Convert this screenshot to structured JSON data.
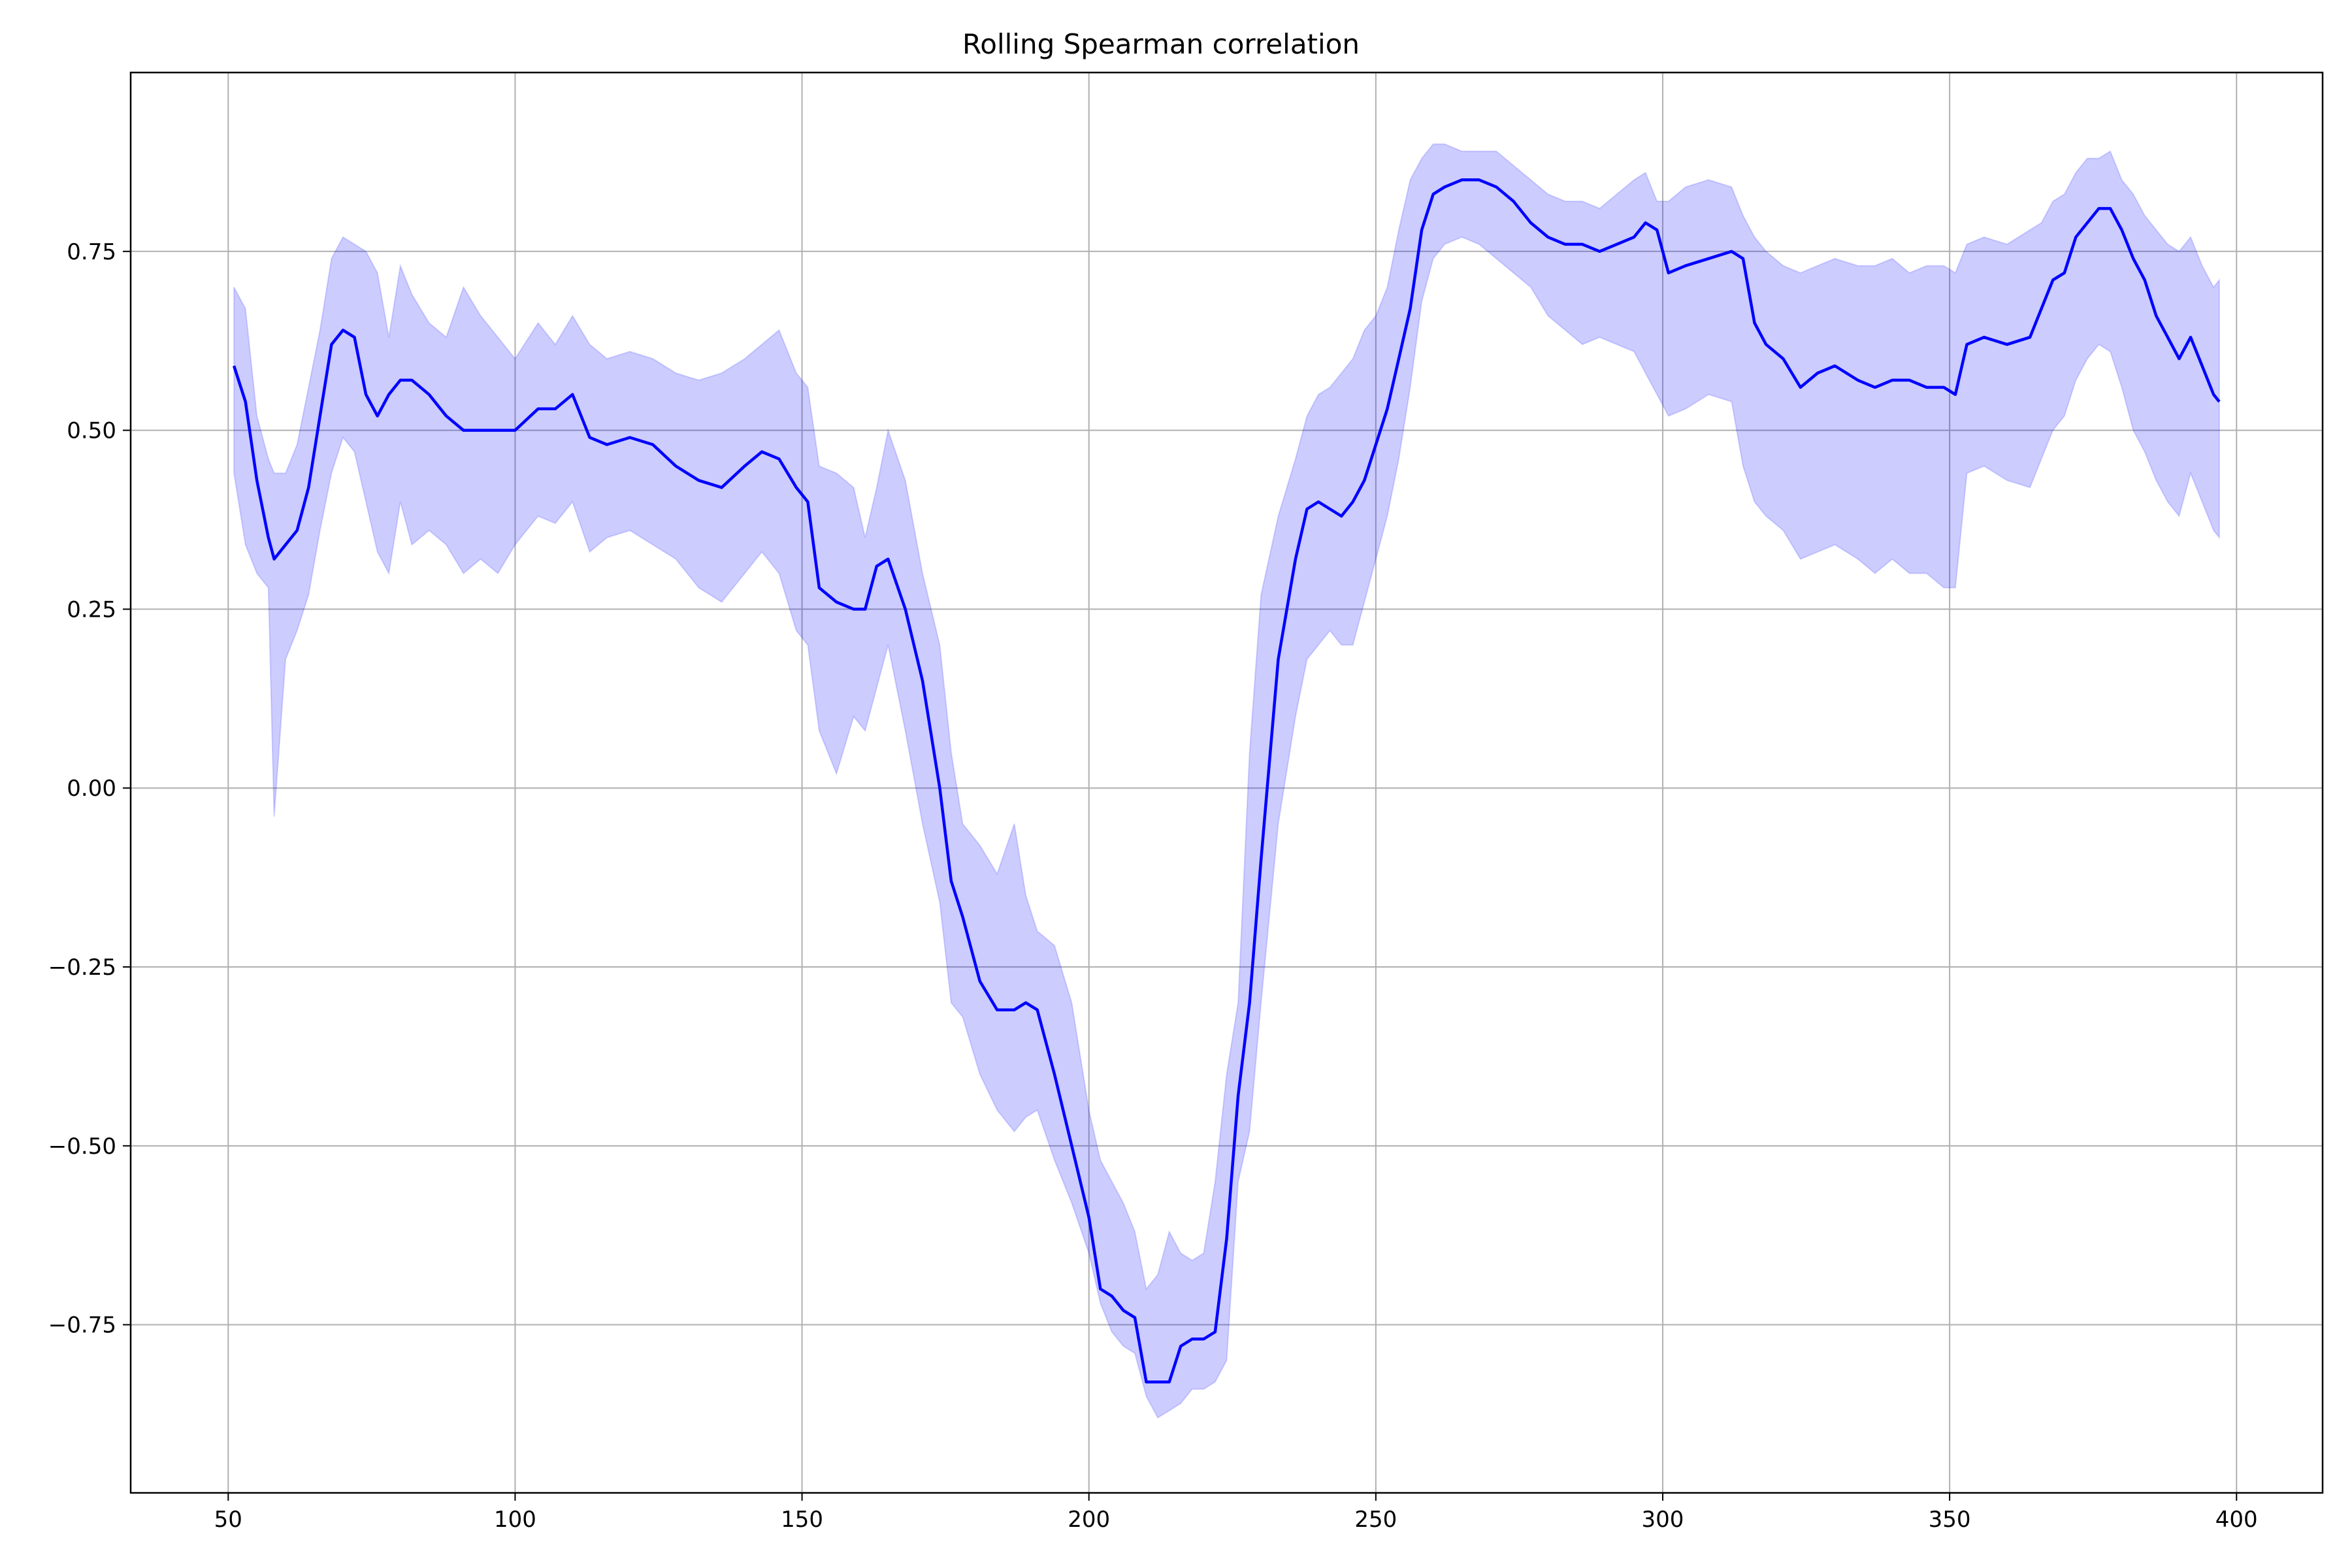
{
  "chart_data": {
    "type": "line",
    "title": "Rolling Spearman correlation",
    "xlabel": "",
    "ylabel": "",
    "xlim": [
      33,
      415
    ],
    "ylim": [
      -0.985,
      1.0
    ],
    "grid": true,
    "colors": {
      "line": "#0000ff",
      "band": "#0000ff",
      "grid": "#b0b0b0",
      "axes": "#000000"
    },
    "x_ticks": [
      50,
      100,
      150,
      200,
      250,
      300,
      350,
      400
    ],
    "x_tick_labels": [
      "50",
      "100",
      "150",
      "200",
      "250",
      "300",
      "350",
      "400"
    ],
    "y_ticks": [
      0.75,
      0.5,
      0.25,
      0.0,
      -0.25,
      -0.5,
      -0.75
    ],
    "y_tick_labels": [
      "0.75",
      "0.50",
      "0.25",
      "0.00",
      "−0.25",
      "−0.50",
      "−0.75"
    ],
    "series": [
      {
        "x": [
          51,
          53,
          55,
          57,
          58,
          60,
          62,
          64,
          66,
          68,
          70,
          72,
          74,
          76,
          78,
          80,
          82,
          85,
          88,
          91,
          94,
          97,
          100,
          104,
          107,
          110,
          113,
          116,
          120,
          124,
          128,
          132,
          136,
          140,
          143,
          146,
          149,
          151,
          153,
          156,
          159,
          161,
          163,
          165,
          168,
          171,
          174,
          176,
          178,
          181,
          184,
          187,
          189,
          191,
          194,
          197,
          200,
          202,
          204,
          206,
          208,
          210,
          212,
          214,
          216,
          218,
          220,
          222,
          224,
          226,
          228,
          230,
          233,
          236,
          238,
          240,
          242,
          244,
          246,
          248,
          250,
          252,
          254,
          256,
          258,
          260,
          262,
          265,
          268,
          271,
          274,
          277,
          280,
          283,
          286,
          289,
          292,
          295,
          297,
          299,
          301,
          304,
          308,
          312,
          314,
          316,
          318,
          321,
          324,
          327,
          330,
          334,
          337,
          340,
          343,
          346,
          349,
          351,
          353,
          356,
          360,
          364,
          366,
          368,
          370,
          372,
          374,
          376,
          378,
          380,
          382,
          384,
          386,
          388,
          390,
          392,
          394,
          396,
          397
        ],
        "mean": [
          0.59,
          0.54,
          0.43,
          0.35,
          0.32,
          0.34,
          0.36,
          0.42,
          0.52,
          0.62,
          0.64,
          0.63,
          0.55,
          0.52,
          0.55,
          0.57,
          0.57,
          0.55,
          0.52,
          0.5,
          0.5,
          0.5,
          0.5,
          0.53,
          0.53,
          0.55,
          0.49,
          0.48,
          0.49,
          0.48,
          0.45,
          0.43,
          0.42,
          0.45,
          0.47,
          0.46,
          0.42,
          0.4,
          0.28,
          0.26,
          0.25,
          0.25,
          0.31,
          0.32,
          0.25,
          0.15,
          0.0,
          -0.13,
          -0.18,
          -0.27,
          -0.31,
          -0.31,
          -0.3,
          -0.31,
          -0.4,
          -0.5,
          -0.6,
          -0.7,
          -0.71,
          -0.73,
          -0.74,
          -0.83,
          -0.83,
          -0.83,
          -0.78,
          -0.77,
          -0.77,
          -0.76,
          -0.63,
          -0.43,
          -0.3,
          -0.1,
          0.18,
          0.32,
          0.39,
          0.4,
          0.39,
          0.38,
          0.4,
          0.43,
          0.48,
          0.53,
          0.6,
          0.67,
          0.78,
          0.83,
          0.84,
          0.85,
          0.85,
          0.84,
          0.82,
          0.79,
          0.77,
          0.76,
          0.76,
          0.75,
          0.76,
          0.77,
          0.79,
          0.78,
          0.72,
          0.73,
          0.74,
          0.75,
          0.74,
          0.65,
          0.62,
          0.6,
          0.56,
          0.58,
          0.59,
          0.57,
          0.56,
          0.57,
          0.57,
          0.56,
          0.56,
          0.55,
          0.62,
          0.63,
          0.62,
          0.63,
          0.67,
          0.71,
          0.72,
          0.77,
          0.79,
          0.81,
          0.81,
          0.78,
          0.74,
          0.71,
          0.66,
          0.63,
          0.6,
          0.63,
          0.59,
          0.55,
          0.54
        ],
        "upper": [
          0.7,
          0.67,
          0.52,
          0.46,
          0.44,
          0.44,
          0.48,
          0.56,
          0.64,
          0.74,
          0.77,
          0.76,
          0.75,
          0.72,
          0.63,
          0.73,
          0.69,
          0.65,
          0.63,
          0.7,
          0.66,
          0.63,
          0.6,
          0.65,
          0.62,
          0.66,
          0.62,
          0.6,
          0.61,
          0.6,
          0.58,
          0.57,
          0.58,
          0.6,
          0.62,
          0.64,
          0.58,
          0.56,
          0.45,
          0.44,
          0.42,
          0.35,
          0.42,
          0.5,
          0.43,
          0.3,
          0.2,
          0.05,
          -0.05,
          -0.08,
          -0.12,
          -0.05,
          -0.15,
          -0.2,
          -0.22,
          -0.3,
          -0.45,
          -0.52,
          -0.55,
          -0.58,
          -0.62,
          -0.7,
          -0.68,
          -0.62,
          -0.65,
          -0.66,
          -0.65,
          -0.55,
          -0.4,
          -0.3,
          0.05,
          0.27,
          0.38,
          0.46,
          0.52,
          0.55,
          0.56,
          0.58,
          0.6,
          0.64,
          0.66,
          0.7,
          0.78,
          0.85,
          0.88,
          0.9,
          0.9,
          0.89,
          0.89,
          0.89,
          0.87,
          0.85,
          0.83,
          0.82,
          0.82,
          0.81,
          0.83,
          0.85,
          0.86,
          0.82,
          0.82,
          0.84,
          0.85,
          0.84,
          0.8,
          0.77,
          0.75,
          0.73,
          0.72,
          0.73,
          0.74,
          0.73,
          0.73,
          0.74,
          0.72,
          0.73,
          0.73,
          0.72,
          0.76,
          0.77,
          0.76,
          0.78,
          0.79,
          0.82,
          0.83,
          0.86,
          0.88,
          0.88,
          0.89,
          0.85,
          0.83,
          0.8,
          0.78,
          0.76,
          0.75,
          0.77,
          0.73,
          0.7,
          0.71
        ],
        "lower": [
          0.44,
          0.34,
          0.3,
          0.28,
          -0.04,
          0.18,
          0.22,
          0.27,
          0.36,
          0.44,
          0.49,
          0.47,
          0.4,
          0.33,
          0.3,
          0.4,
          0.34,
          0.36,
          0.34,
          0.3,
          0.32,
          0.3,
          0.34,
          0.38,
          0.37,
          0.4,
          0.33,
          0.35,
          0.36,
          0.34,
          0.32,
          0.28,
          0.26,
          0.3,
          0.33,
          0.3,
          0.22,
          0.2,
          0.08,
          0.02,
          0.1,
          0.08,
          0.14,
          0.2,
          0.08,
          -0.05,
          -0.16,
          -0.3,
          -0.32,
          -0.4,
          -0.45,
          -0.48,
          -0.46,
          -0.45,
          -0.52,
          -0.58,
          -0.65,
          -0.72,
          -0.76,
          -0.78,
          -0.79,
          -0.85,
          -0.88,
          -0.87,
          -0.86,
          -0.84,
          -0.84,
          -0.83,
          -0.8,
          -0.55,
          -0.48,
          -0.3,
          -0.05,
          0.1,
          0.18,
          0.2,
          0.22,
          0.2,
          0.2,
          0.26,
          0.32,
          0.38,
          0.46,
          0.56,
          0.68,
          0.74,
          0.76,
          0.77,
          0.76,
          0.74,
          0.72,
          0.7,
          0.66,
          0.64,
          0.62,
          0.63,
          0.62,
          0.61,
          0.58,
          0.55,
          0.52,
          0.53,
          0.55,
          0.54,
          0.45,
          0.4,
          0.38,
          0.36,
          0.32,
          0.33,
          0.34,
          0.32,
          0.3,
          0.32,
          0.3,
          0.3,
          0.28,
          0.28,
          0.44,
          0.45,
          0.43,
          0.42,
          0.46,
          0.5,
          0.52,
          0.57,
          0.6,
          0.62,
          0.61,
          0.56,
          0.5,
          0.47,
          0.43,
          0.4,
          0.38,
          0.44,
          0.4,
          0.36,
          0.35
        ]
      }
    ]
  }
}
